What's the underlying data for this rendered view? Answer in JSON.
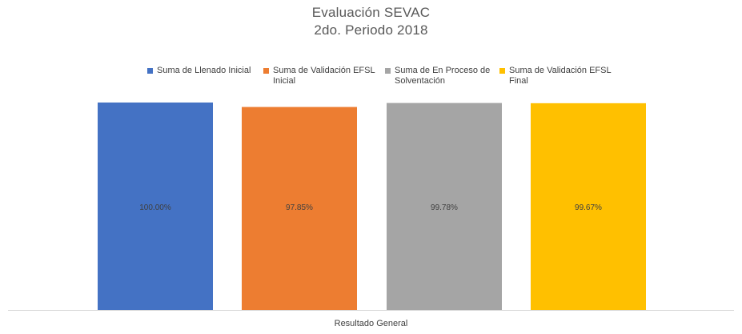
{
  "chart_data": {
    "type": "bar",
    "title": "Evaluación SEVAC",
    "subtitle": "2do. Periodo 2018",
    "categories": [
      "Resultado General"
    ],
    "series": [
      {
        "name": "Suma de Llenado Inicial",
        "values": [
          100.0
        ],
        "label": "100.00%",
        "color": "#4472C4"
      },
      {
        "name": "Suma de Validación EFSL Inicial",
        "values": [
          97.85
        ],
        "label": "97.85%",
        "color": "#ED7D31"
      },
      {
        "name": "Suma de En Proceso de Solventación",
        "values": [
          99.78
        ],
        "label": "99.78%",
        "color": "#A5A5A5"
      },
      {
        "name": "Suma de Validación EFSL Final",
        "values": [
          99.67
        ],
        "label": "99.67%",
        "color": "#FFC000"
      }
    ],
    "xlabel": "",
    "ylabel": "",
    "ylim": [
      0,
      100
    ],
    "grid": false,
    "legend_position": "top"
  },
  "colors": {
    "axis_line": "#D9D9D9",
    "text": "#595959"
  }
}
